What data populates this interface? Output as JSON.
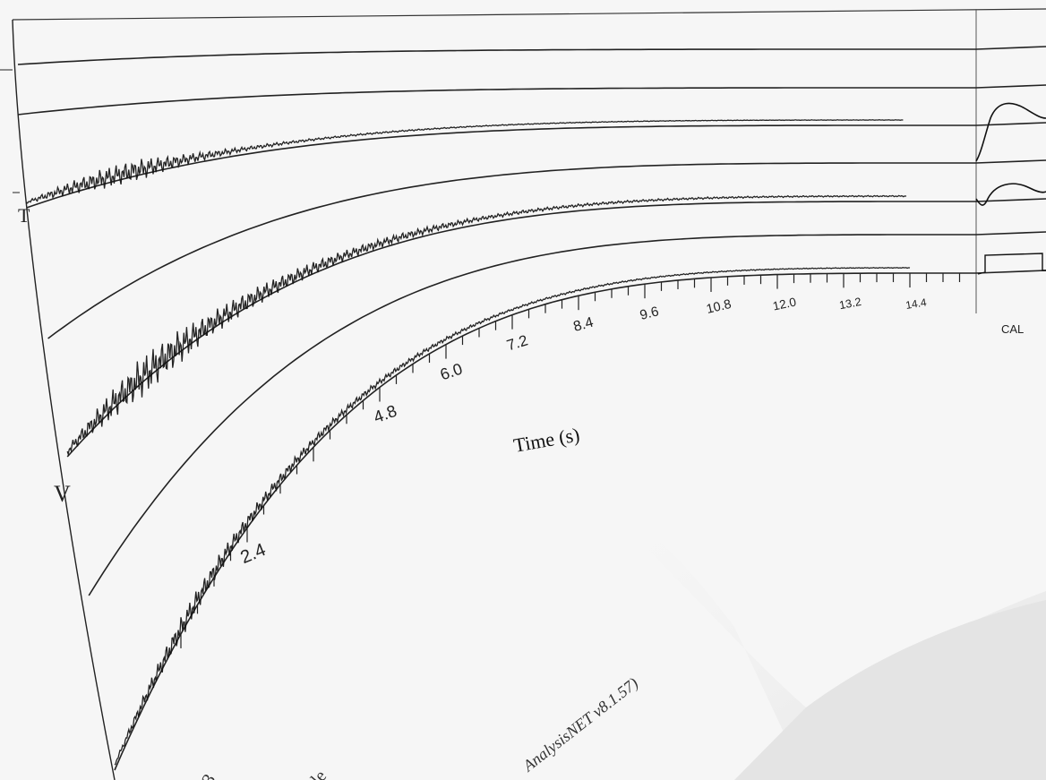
{
  "chart_data": {
    "type": "line",
    "title": "",
    "xlabel": "Time (s)",
    "ylabel": "",
    "x_unit": "s",
    "xlim": [
      0,
      15.6
    ],
    "x_ticks": [
      2.4,
      4.8,
      6.0,
      7.2,
      8.4,
      9.6,
      10.8,
      12.0,
      13.2,
      14.4
    ],
    "x_tick_labels": [
      "2.4",
      "4.8",
      "6.0",
      "7.2",
      "8.4",
      "9.6",
      "10.8",
      "12.0",
      "13.2",
      "14.4"
    ],
    "calibration_label": "CAL",
    "channel_letters": [
      "T",
      "V"
    ],
    "footer_text": "AnalysisNET v8.1.57)",
    "partial_bottom_text": [
      "3",
      "le"
    ],
    "series": [
      {
        "channel": "T",
        "kind": "waveform",
        "x": [
          0,
          0.6,
          1.2,
          1.8,
          2.4,
          3.0,
          3.6,
          4.8,
          7.2,
          9.6,
          12.0,
          14.4
        ],
        "amplitude": [
          0.1,
          0.5,
          0.9,
          1.0,
          0.6,
          0.35,
          0.2,
          0.1,
          0.05,
          0.03,
          0.02,
          0.02
        ]
      },
      {
        "channel": "T",
        "kind": "flat",
        "x": [
          0,
          15.6
        ],
        "amplitude": [
          0,
          0
        ]
      },
      {
        "channel": "V",
        "kind": "waveform",
        "x": [
          0,
          0.6,
          1.2,
          1.8,
          2.4,
          3.0,
          3.6,
          4.8,
          7.2,
          9.6,
          12.0,
          14.4
        ],
        "amplitude": [
          0.2,
          0.6,
          1.0,
          0.9,
          0.6,
          0.5,
          0.4,
          0.25,
          0.1,
          0.06,
          0.04,
          0.03
        ]
      },
      {
        "channel": "V",
        "kind": "flat",
        "x": [
          0,
          15.6
        ],
        "amplitude": [
          0,
          0
        ]
      },
      {
        "channel": "V",
        "kind": "waveform",
        "x": [
          0,
          0.6,
          1.2,
          1.8,
          2.4,
          3.0,
          3.6,
          4.8,
          7.2,
          9.6,
          12.0,
          14.4
        ],
        "amplitude": [
          0.1,
          0.5,
          0.8,
          0.7,
          0.5,
          0.4,
          0.3,
          0.2,
          0.08,
          0.05,
          0.03,
          0.02
        ]
      }
    ],
    "grid": false,
    "legend": "none"
  },
  "colors": {
    "paper": "#f4f4f4",
    "ink": "#111111",
    "frame": "#333333",
    "shadow": "#d6d6d6"
  }
}
